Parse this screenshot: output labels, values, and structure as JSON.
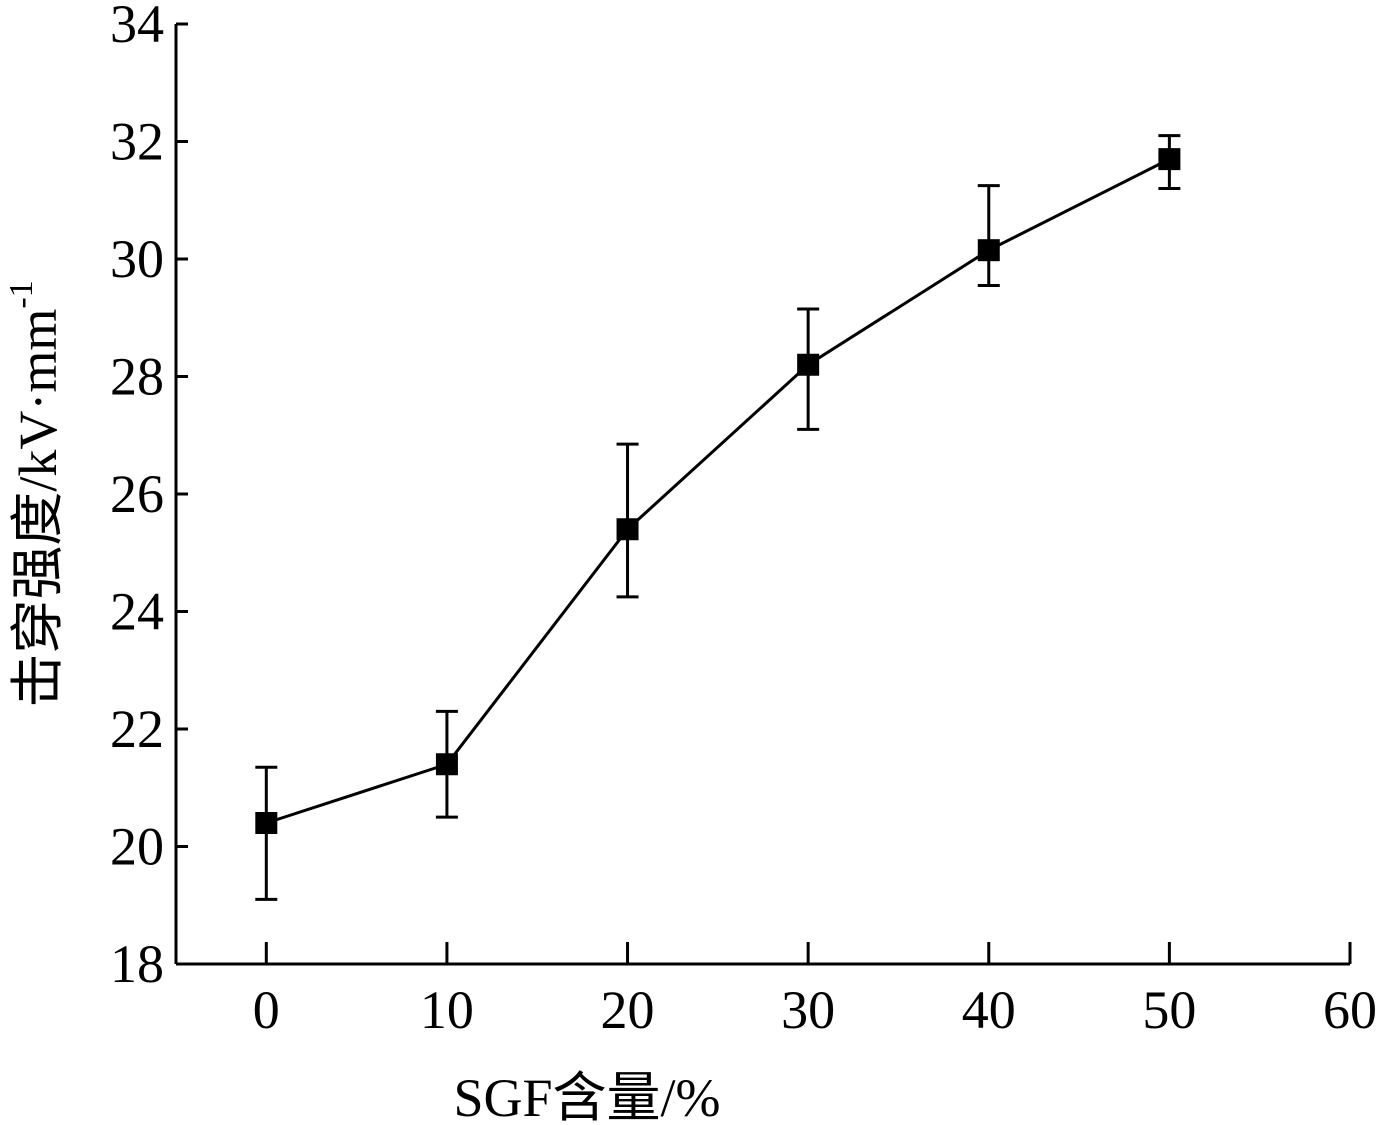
{
  "chart_data": {
    "type": "line",
    "title": "",
    "xlabel": "SGF含量/%",
    "ylabel": "击穿强度/kV·mm",
    "ylabel_superscript": "-1",
    "xlim": [
      -5,
      60
    ],
    "ylim": [
      18,
      34
    ],
    "xticks": [
      0,
      10,
      20,
      30,
      40,
      50,
      60
    ],
    "yticks": [
      18,
      20,
      22,
      24,
      26,
      28,
      30,
      32,
      34
    ],
    "grid": false,
    "legend": "none",
    "series": [
      {
        "marker": "square",
        "color": "#000000",
        "x": [
          0,
          10,
          20,
          30,
          40,
          50
        ],
        "y": [
          20.4,
          21.4,
          25.4,
          28.2,
          30.15,
          31.7
        ],
        "err_low": [
          19.1,
          20.5,
          24.25,
          27.1,
          29.55,
          31.2
        ],
        "err_high": [
          21.35,
          22.3,
          26.85,
          29.15,
          31.25,
          32.1
        ]
      }
    ]
  }
}
